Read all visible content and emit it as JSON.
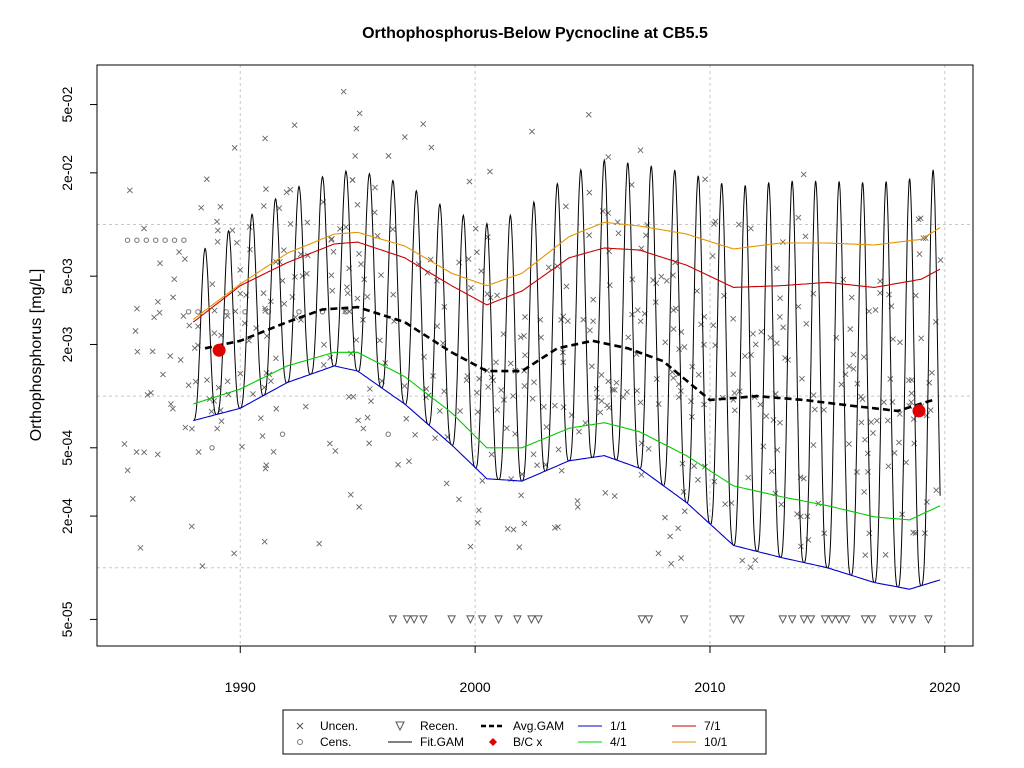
{
  "chart_data": {
    "type": "scatter",
    "title": "Orthophosphorus-Below Pycnocline at CB5.5",
    "ylabel": "Orthophosphorus [mg/L]",
    "xlabel": "",
    "y_scale": "log",
    "xlim": [
      1983.9,
      2021.2
    ],
    "ylim": [
      3.5e-05,
      0.085
    ],
    "x_ticks": [
      1990,
      2000,
      2010,
      2020
    ],
    "y_ticks": [
      {
        "value": 0.05,
        "label": "5e-02"
      },
      {
        "value": 0.02,
        "label": "2e-02"
      },
      {
        "value": 0.005,
        "label": "5e-03"
      },
      {
        "value": 0.002,
        "label": "2e-03"
      },
      {
        "value": 0.0005,
        "label": "5e-04"
      },
      {
        "value": 0.0002,
        "label": "2e-04"
      },
      {
        "value": 5e-05,
        "label": "5e-05"
      }
    ],
    "grid": true,
    "legend_position": "bottom",
    "legend": [
      {
        "label": "Uncen.",
        "marker": "x",
        "color": "#555555"
      },
      {
        "label": "Cens.",
        "marker": "circle",
        "color": "#777777"
      },
      {
        "label": "Recen.",
        "marker": "triangle-down",
        "color": "#555555"
      },
      {
        "label": "Fit.GAM",
        "marker": "line",
        "color": "#000000"
      },
      {
        "label": "Avg.GAM",
        "marker": "dashed",
        "color": "#000000"
      },
      {
        "label": "B/C x",
        "marker": "dot",
        "color": "#e00000"
      },
      {
        "label": "1/1",
        "marker": "line",
        "color": "#0000cc"
      },
      {
        "label": "4/1",
        "marker": "line",
        "color": "#00cc00"
      },
      {
        "label": "7/1",
        "marker": "line",
        "color": "#cc0000"
      },
      {
        "label": "10/1",
        "marker": "line",
        "color": "#e69500"
      }
    ],
    "series": [
      {
        "name": "10/1",
        "color": "#e69500",
        "x": [
          1988,
          1990,
          1992,
          1994,
          1995,
          1997,
          1999,
          2000.5,
          2002,
          2004,
          2005.5,
          2007,
          2009,
          2011,
          2013,
          2015,
          2017,
          2019,
          2019.8
        ],
        "y": [
          0.0028,
          0.0045,
          0.0068,
          0.0088,
          0.009,
          0.0075,
          0.0052,
          0.0044,
          0.0052,
          0.0085,
          0.0103,
          0.0098,
          0.0088,
          0.0072,
          0.0078,
          0.0078,
          0.0076,
          0.0082,
          0.0096
        ]
      },
      {
        "name": "7/1",
        "color": "#cc0000",
        "x": [
          1988,
          1990,
          1992,
          1994,
          1995,
          1997,
          1999,
          2000.5,
          2002,
          2004,
          2005.5,
          2007,
          2009,
          2011,
          2013,
          2015,
          2017,
          2019,
          2019.8
        ],
        "y": [
          0.0027,
          0.0044,
          0.006,
          0.0077,
          0.0079,
          0.0064,
          0.0044,
          0.0034,
          0.0041,
          0.0064,
          0.0073,
          0.0071,
          0.0058,
          0.0043,
          0.0044,
          0.0046,
          0.0043,
          0.0048,
          0.0055
        ]
      },
      {
        "name": "Avg.GAM",
        "color": "#000000",
        "x": [
          1988.5,
          1990,
          1992,
          1993.5,
          1995,
          1997,
          1999,
          2000.5,
          2002,
          2003.5,
          2005,
          2006.5,
          2008,
          2010,
          2012,
          2014,
          2016,
          2018,
          2019.5
        ],
        "y": [
          0.0019,
          0.0021,
          0.0027,
          0.0032,
          0.0033,
          0.0027,
          0.0018,
          0.0014,
          0.0014,
          0.0019,
          0.0021,
          0.0019,
          0.0016,
          0.00095,
          0.001,
          0.00095,
          0.00088,
          0.00082,
          0.00095
        ]
      },
      {
        "name": "4/1",
        "color": "#00cc00",
        "x": [
          1988,
          1990,
          1992,
          1994,
          1995,
          1997,
          1999,
          2000.5,
          2002,
          2004,
          2005.5,
          2007,
          2009,
          2011,
          2013,
          2015,
          2017,
          2018.5,
          2019.8
        ],
        "y": [
          0.0009,
          0.0011,
          0.0015,
          0.0018,
          0.0018,
          0.0013,
          0.0008,
          0.0005,
          0.0005,
          0.00065,
          0.0007,
          0.00062,
          0.00045,
          0.0003,
          0.00026,
          0.00023,
          0.000198,
          0.00019,
          0.00023
        ]
      },
      {
        "name": "1/1",
        "color": "#0000cc",
        "x": [
          1988,
          1990,
          1992,
          1994,
          1995,
          1997,
          1999,
          2000.5,
          2002,
          2004,
          2005.5,
          2007,
          2009,
          2011,
          2013,
          2015,
          2017,
          2018.5,
          2019.8
        ],
        "y": [
          0.00072,
          0.00085,
          0.0012,
          0.0015,
          0.0014,
          0.0009,
          0.00052,
          0.00033,
          0.00032,
          0.00042,
          0.00045,
          0.00038,
          0.00024,
          0.000135,
          0.000115,
          0.0001,
          8.2e-05,
          7.5e-05,
          8.5e-05
        ]
      },
      {
        "name": "B/C x",
        "color": "#e00000",
        "x": [
          1989.1,
          2018.9
        ],
        "y": [
          0.00185,
          0.00082
        ]
      }
    ]
  }
}
